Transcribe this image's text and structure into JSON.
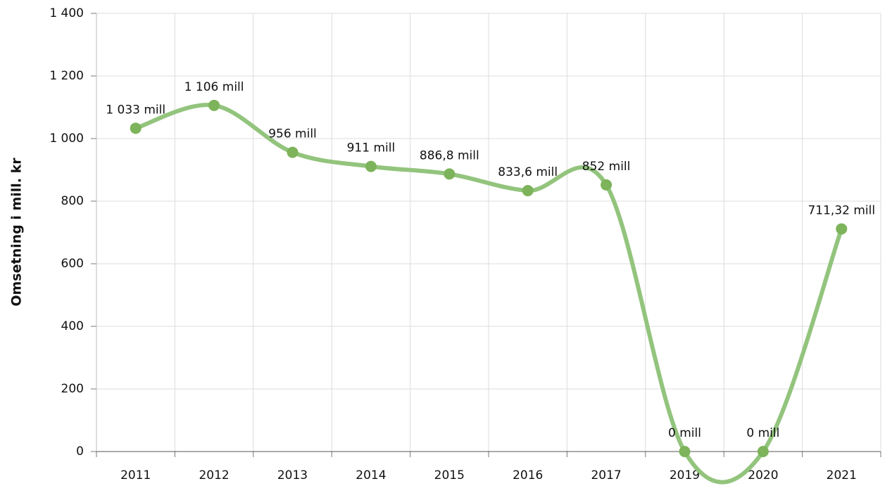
{
  "chart_data": {
    "type": "line",
    "y_label": "Omsetning i mill. kr",
    "categories": [
      "2011",
      "2012",
      "2013",
      "2014",
      "2015",
      "2016",
      "2017",
      "2019",
      "2020",
      "2021"
    ],
    "series": [
      {
        "name": "Omsetning",
        "color": "#93c47d",
        "marker_color": "#7db35a",
        "values": [
          1033,
          1106,
          956,
          911,
          886.8,
          833.6,
          852,
          0,
          0,
          711.32
        ],
        "value_labels": [
          "1 033 mill",
          "1 106 mill",
          "956 mill",
          "911 mill",
          "886,8 mill",
          "833,6 mill",
          "852 mill",
          "0 mill",
          "0 mill",
          "711,32 mill"
        ]
      }
    ],
    "ylim": [
      0,
      1400
    ],
    "yticks": [
      0,
      200,
      400,
      600,
      800,
      {
        "value": 1000,
        "label": "1 000"
      },
      {
        "value": 1200,
        "label": "1 200"
      },
      {
        "value": 1400,
        "label": "1 400"
      }
    ],
    "grid": true
  }
}
